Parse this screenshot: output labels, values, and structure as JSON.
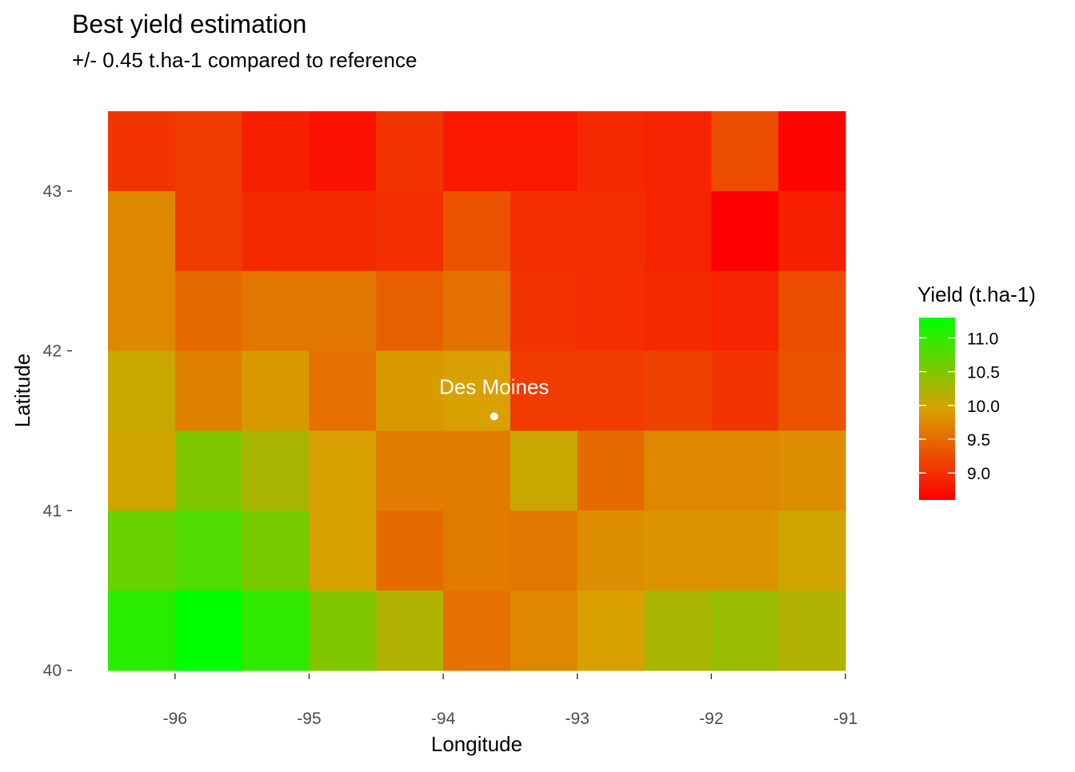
{
  "chart_data": {
    "type": "heatmap",
    "title": "Best yield estimation",
    "subtitle": "+/- 0.45 t.ha-1 compared to reference",
    "xlabel": "Longitude",
    "ylabel": "Latitude",
    "x_ticks": [
      "-96",
      "-95",
      "-94",
      "-93",
      "-92",
      "-91"
    ],
    "y_ticks": [
      "40",
      "41",
      "42",
      "43"
    ],
    "x_centers": [
      -96.25,
      -95.75,
      -95.25,
      -94.75,
      -94.25,
      -93.75,
      -93.25,
      -92.75,
      -92.25,
      -91.75,
      -91.25
    ],
    "y_centers": [
      43.25,
      42.75,
      42.25,
      41.75,
      41.25,
      40.75,
      40.25
    ],
    "xlim": [
      -96.5,
      -91.0
    ],
    "ylim": [
      40.0,
      43.5
    ],
    "cell_width": 0.5,
    "cell_height": 0.5,
    "values": [
      [
        9.05,
        9.1,
        8.85,
        8.75,
        9.05,
        8.8,
        8.8,
        8.95,
        8.9,
        9.25,
        8.65
      ],
      [
        9.75,
        9.1,
        8.95,
        8.95,
        9.0,
        9.3,
        9.0,
        9.0,
        8.9,
        8.6,
        8.85
      ],
      [
        9.75,
        9.5,
        9.6,
        9.6,
        9.4,
        9.55,
        9.05,
        9.0,
        8.95,
        8.9,
        9.25
      ],
      [
        10.05,
        9.7,
        9.9,
        9.55,
        9.9,
        9.95,
        9.1,
        9.1,
        9.15,
        9.05,
        9.3
      ],
      [
        10.0,
        10.5,
        10.25,
        9.95,
        9.65,
        9.65,
        10.05,
        9.5,
        9.75,
        9.75,
        9.8
      ],
      [
        10.65,
        10.8,
        10.55,
        9.95,
        9.5,
        9.65,
        9.6,
        9.8,
        9.85,
        9.85,
        10.0
      ],
      [
        11.05,
        11.3,
        11.0,
        10.5,
        10.2,
        9.55,
        9.75,
        9.95,
        10.25,
        10.35,
        10.2
      ]
    ],
    "legend": {
      "title": "Yield (t.ha-1)",
      "breaks": [
        "11.0",
        "10.5",
        "10.0",
        "9.5",
        "9.0"
      ],
      "min": 8.6,
      "max": 11.3,
      "colors": [
        "#ff0000",
        "#d8a000",
        "#00ff00"
      ],
      "placement": "right"
    },
    "annotations": [
      {
        "label": "Des Moines",
        "lon": -93.62,
        "lat": 41.59
      }
    ],
    "grid": false
  }
}
